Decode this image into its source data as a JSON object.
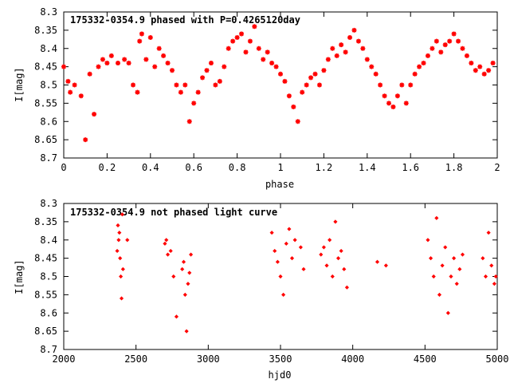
{
  "chart_data": [
    {
      "type": "scatter",
      "title": "175332-0354.9 phased with P=0.4265120day",
      "xlabel": "phase",
      "ylabel": "I[mag]",
      "xlim": [
        0,
        2
      ],
      "ylim": [
        8.3,
        8.7
      ],
      "y_inverted": true,
      "xticks": [
        0,
        0.2,
        0.4,
        0.6,
        0.8,
        1,
        1.2,
        1.4,
        1.6,
        1.8,
        2
      ],
      "xtick_labels": [
        "0",
        "0.2",
        "0.4",
        "0.6",
        "0.8",
        "1",
        "1.2",
        "1.4",
        "1.6",
        "1.8",
        "2"
      ],
      "yticks": [
        8.3,
        8.35,
        8.4,
        8.45,
        8.5,
        8.55,
        8.6,
        8.65,
        8.7
      ],
      "ytick_labels": [
        "8.3",
        "8.35",
        "8.4",
        "8.45",
        "8.5",
        "8.55",
        "8.6",
        "8.65",
        "8.7"
      ],
      "grid": false,
      "marker_color": "#ff0000",
      "marker": "asterisk",
      "series": [
        {
          "points": [
            [
              0.0,
              8.45
            ],
            [
              0.02,
              8.49
            ],
            [
              0.03,
              8.52
            ],
            [
              0.05,
              8.5
            ],
            [
              0.08,
              8.53
            ],
            [
              0.1,
              8.65
            ],
            [
              0.12,
              8.47
            ],
            [
              0.14,
              8.58
            ],
            [
              0.16,
              8.45
            ],
            [
              0.18,
              8.43
            ],
            [
              0.2,
              8.44
            ],
            [
              0.22,
              8.42
            ],
            [
              0.25,
              8.44
            ],
            [
              0.28,
              8.43
            ],
            [
              0.3,
              8.44
            ],
            [
              0.32,
              8.5
            ],
            [
              0.34,
              8.52
            ],
            [
              0.35,
              8.38
            ],
            [
              0.36,
              8.36
            ],
            [
              0.38,
              8.43
            ],
            [
              0.4,
              8.37
            ],
            [
              0.42,
              8.45
            ],
            [
              0.44,
              8.4
            ],
            [
              0.46,
              8.42
            ],
            [
              0.48,
              8.44
            ],
            [
              0.5,
              8.46
            ],
            [
              0.52,
              8.5
            ],
            [
              0.54,
              8.52
            ],
            [
              0.56,
              8.5
            ],
            [
              0.58,
              8.6
            ],
            [
              0.6,
              8.55
            ],
            [
              0.62,
              8.52
            ],
            [
              0.64,
              8.48
            ],
            [
              0.66,
              8.46
            ],
            [
              0.68,
              8.44
            ],
            [
              0.7,
              8.5
            ],
            [
              0.72,
              8.49
            ],
            [
              0.74,
              8.45
            ],
            [
              0.76,
              8.4
            ],
            [
              0.78,
              8.38
            ],
            [
              0.8,
              8.37
            ],
            [
              0.82,
              8.36
            ],
            [
              0.84,
              8.41
            ],
            [
              0.86,
              8.38
            ],
            [
              0.88,
              8.34
            ],
            [
              0.9,
              8.4
            ],
            [
              0.92,
              8.43
            ],
            [
              0.94,
              8.41
            ],
            [
              0.96,
              8.44
            ],
            [
              0.98,
              8.45
            ],
            [
              1.0,
              8.47
            ],
            [
              1.02,
              8.49
            ],
            [
              1.04,
              8.53
            ],
            [
              1.06,
              8.56
            ],
            [
              1.08,
              8.6
            ],
            [
              1.1,
              8.52
            ],
            [
              1.12,
              8.5
            ],
            [
              1.14,
              8.48
            ],
            [
              1.16,
              8.47
            ],
            [
              1.18,
              8.5
            ],
            [
              1.2,
              8.46
            ],
            [
              1.22,
              8.43
            ],
            [
              1.24,
              8.4
            ],
            [
              1.26,
              8.42
            ],
            [
              1.28,
              8.39
            ],
            [
              1.3,
              8.41
            ],
            [
              1.32,
              8.37
            ],
            [
              1.34,
              8.35
            ],
            [
              1.36,
              8.38
            ],
            [
              1.38,
              8.4
            ],
            [
              1.4,
              8.43
            ],
            [
              1.42,
              8.45
            ],
            [
              1.44,
              8.47
            ],
            [
              1.46,
              8.5
            ],
            [
              1.48,
              8.53
            ],
            [
              1.5,
              8.55
            ],
            [
              1.52,
              8.56
            ],
            [
              1.54,
              8.53
            ],
            [
              1.56,
              8.5
            ],
            [
              1.58,
              8.55
            ],
            [
              1.6,
              8.5
            ],
            [
              1.62,
              8.47
            ],
            [
              1.64,
              8.45
            ],
            [
              1.66,
              8.44
            ],
            [
              1.68,
              8.42
            ],
            [
              1.7,
              8.4
            ],
            [
              1.72,
              8.38
            ],
            [
              1.74,
              8.41
            ],
            [
              1.76,
              8.39
            ],
            [
              1.78,
              8.38
            ],
            [
              1.8,
              8.36
            ],
            [
              1.82,
              8.38
            ],
            [
              1.84,
              8.4
            ],
            [
              1.86,
              8.42
            ],
            [
              1.88,
              8.44
            ],
            [
              1.9,
              8.46
            ],
            [
              1.92,
              8.45
            ],
            [
              1.94,
              8.47
            ],
            [
              1.96,
              8.46
            ],
            [
              1.98,
              8.44
            ]
          ]
        }
      ]
    },
    {
      "type": "scatter",
      "title": "175332-0354.9 not phased light curve",
      "xlabel": "hjd0",
      "ylabel": "I[mag]",
      "xlim": [
        2000,
        5000
      ],
      "ylim": [
        8.3,
        8.7
      ],
      "y_inverted": true,
      "xticks": [
        2000,
        2500,
        3000,
        3500,
        4000,
        4500,
        5000
      ],
      "xtick_labels": [
        "2000",
        "2500",
        "3000",
        "3500",
        "4000",
        "4500",
        "5000"
      ],
      "yticks": [
        8.3,
        8.35,
        8.4,
        8.45,
        8.5,
        8.55,
        8.6,
        8.65,
        8.7
      ],
      "ytick_labels": [
        "8.3",
        "8.35",
        "8.4",
        "8.45",
        "8.5",
        "8.55",
        "8.6",
        "8.65",
        "8.7"
      ],
      "grid": false,
      "marker_color": "#ff0000",
      "marker": "diamond",
      "series": [
        {
          "points": [
            [
              2370,
              8.43
            ],
            [
              2375,
              8.36
            ],
            [
              2380,
              8.4
            ],
            [
              2385,
              8.38
            ],
            [
              2390,
              8.45
            ],
            [
              2395,
              8.5
            ],
            [
              2400,
              8.56
            ],
            [
              2405,
              8.33
            ],
            [
              2410,
              8.48
            ],
            [
              2440,
              8.4
            ],
            [
              2700,
              8.41
            ],
            [
              2710,
              8.4
            ],
            [
              2720,
              8.44
            ],
            [
              2740,
              8.43
            ],
            [
              2760,
              8.5
            ],
            [
              2780,
              8.61
            ],
            [
              2820,
              8.48
            ],
            [
              2830,
              8.46
            ],
            [
              2840,
              8.55
            ],
            [
              2850,
              8.65
            ],
            [
              2860,
              8.52
            ],
            [
              2870,
              8.49
            ],
            [
              2880,
              8.44
            ],
            [
              3440,
              8.38
            ],
            [
              3460,
              8.43
            ],
            [
              3480,
              8.46
            ],
            [
              3500,
              8.5
            ],
            [
              3520,
              8.55
            ],
            [
              3540,
              8.41
            ],
            [
              3560,
              8.37
            ],
            [
              3580,
              8.45
            ],
            [
              3600,
              8.4
            ],
            [
              3640,
              8.42
            ],
            [
              3660,
              8.48
            ],
            [
              3780,
              8.44
            ],
            [
              3800,
              8.42
            ],
            [
              3820,
              8.47
            ],
            [
              3840,
              8.4
            ],
            [
              3860,
              8.5
            ],
            [
              3880,
              8.35
            ],
            [
              3900,
              8.45
            ],
            [
              3920,
              8.43
            ],
            [
              3940,
              8.48
            ],
            [
              3960,
              8.53
            ],
            [
              4170,
              8.46
            ],
            [
              4230,
              8.47
            ],
            [
              4520,
              8.4
            ],
            [
              4540,
              8.45
            ],
            [
              4560,
              8.5
            ],
            [
              4580,
              8.34
            ],
            [
              4600,
              8.55
            ],
            [
              4620,
              8.47
            ],
            [
              4640,
              8.42
            ],
            [
              4660,
              8.6
            ],
            [
              4680,
              8.5
            ],
            [
              4700,
              8.45
            ],
            [
              4720,
              8.52
            ],
            [
              4740,
              8.48
            ],
            [
              4760,
              8.44
            ],
            [
              4900,
              8.45
            ],
            [
              4920,
              8.5
            ],
            [
              4940,
              8.38
            ],
            [
              4960,
              8.47
            ],
            [
              4980,
              8.52
            ],
            [
              4990,
              8.5
            ]
          ]
        }
      ]
    }
  ]
}
